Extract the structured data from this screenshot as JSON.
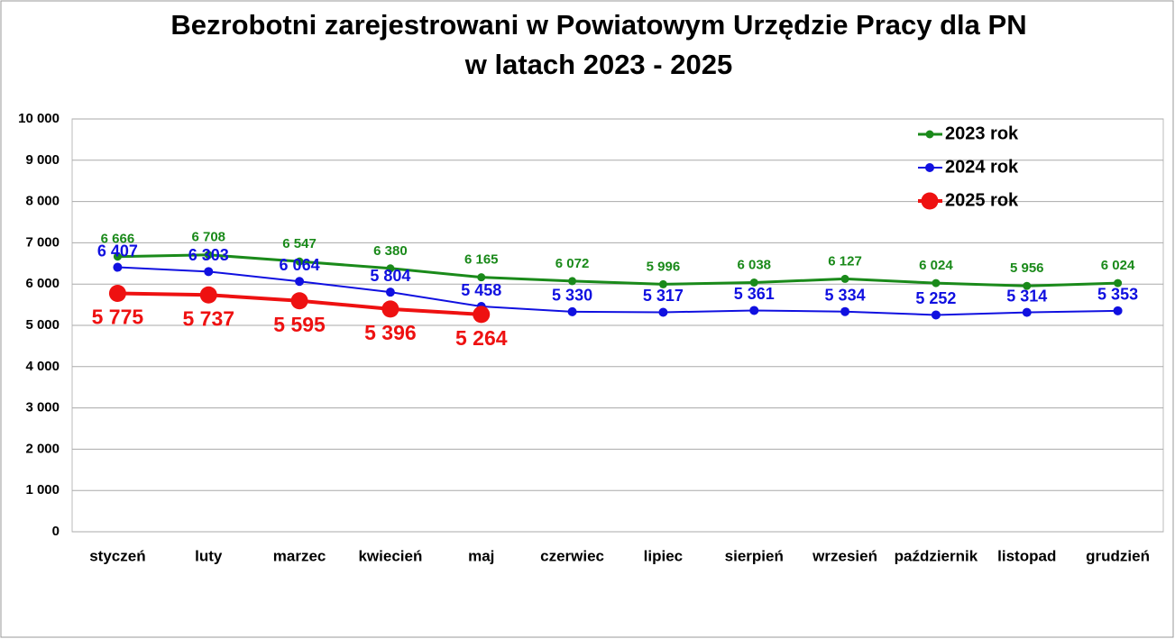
{
  "chart_data": {
    "type": "line",
    "title": [
      "Bezrobotni zarejestrowani w Powiatowym Urzędzie Pracy dla PN",
      "w latach 2023 - 2025"
    ],
    "categories": [
      "styczeń",
      "luty",
      "marzec",
      "kwiecień",
      "maj",
      "czerwiec",
      "lipiec",
      "sierpień",
      "wrzesień",
      "październik",
      "listopad",
      "grudzień"
    ],
    "series": [
      {
        "name": "2023 rok",
        "color": "#1a8a1a",
        "values": [
          6666,
          6708,
          6547,
          6380,
          6165,
          6072,
          5996,
          6038,
          6127,
          6024,
          5956,
          6024
        ],
        "value_labels": [
          "6 666",
          "6 708",
          "6 547",
          "6 380",
          "6 165",
          "6 072",
          "5 996",
          "6 038",
          "6 127",
          "6 024",
          "5 956",
          "6 024"
        ]
      },
      {
        "name": "2024 rok",
        "color": "#1010e0",
        "values": [
          6407,
          6303,
          6064,
          5804,
          5458,
          5330,
          5317,
          5361,
          5334,
          5252,
          5314,
          5353
        ],
        "value_labels": [
          "6 407",
          "6 303",
          "6 064",
          "5 804",
          "5 458",
          "5 330",
          "5 317",
          "5 361",
          "5 334",
          "5 252",
          "5 314",
          "5 353"
        ]
      },
      {
        "name": "2025 rok",
        "color": "#ee1111",
        "values": [
          5775,
          5737,
          5595,
          5396,
          5264,
          null,
          null,
          null,
          null,
          null,
          null,
          null
        ],
        "value_labels": [
          "5 775",
          "5 737",
          "5 595",
          "5 396",
          "5 264",
          null,
          null,
          null,
          null,
          null,
          null,
          null
        ]
      }
    ],
    "ylim": [
      0,
      10000
    ],
    "yticks": [
      0,
      {
        "value": 1000,
        "label": "1 000"
      },
      {
        "value": 2000,
        "label": "2 000"
      },
      {
        "value": 3000,
        "label": "3 000"
      },
      {
        "value": 4000,
        "label": "4 000"
      },
      {
        "value": 5000,
        "label": "5 000"
      },
      {
        "value": 6000,
        "label": "6 000"
      },
      {
        "value": 7000,
        "label": "7 000"
      },
      {
        "value": 8000,
        "label": "8 000"
      },
      {
        "value": 9000,
        "label": "9 000"
      },
      {
        "value": 10000,
        "label": "10 000"
      }
    ],
    "grid": true,
    "legend": "top-right"
  }
}
